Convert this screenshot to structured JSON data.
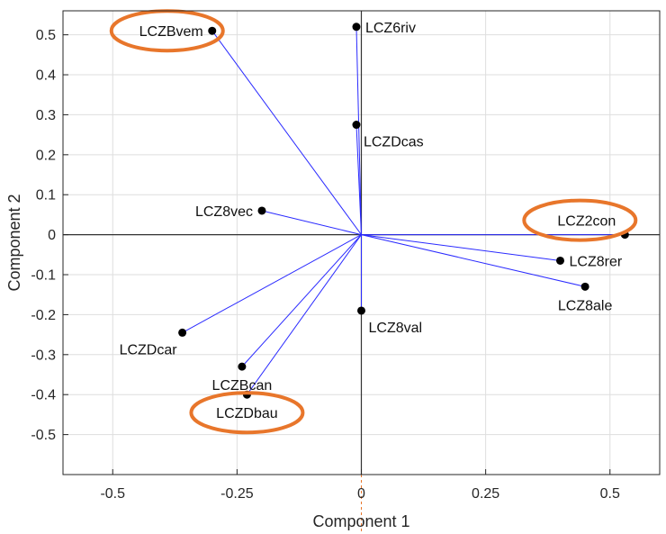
{
  "chart_data": {
    "type": "scatter",
    "xlabel": "Component 1",
    "ylabel": "Component 2",
    "xlim": [
      -0.6,
      0.6
    ],
    "ylim": [
      -0.6,
      0.56
    ],
    "xticks": [
      {
        "value": -0.5,
        "label": "-0.5"
      },
      {
        "value": -0.25,
        "label": "-0.25"
      },
      {
        "value": 0,
        "label": "0"
      },
      {
        "value": 0.25,
        "label": "0.25"
      },
      {
        "value": 0.5,
        "label": "0.5"
      }
    ],
    "yticks": [
      {
        "value": 0.5,
        "label": "0.5"
      },
      {
        "value": 0.4,
        "label": "0.4"
      },
      {
        "value": 0.3,
        "label": "0.3"
      },
      {
        "value": 0.2,
        "label": "0.2"
      },
      {
        "value": 0.1,
        "label": "0.1"
      },
      {
        "value": 0,
        "label": "0"
      },
      {
        "value": -0.1,
        "label": "-0.1"
      },
      {
        "value": -0.2,
        "label": "-0.2"
      },
      {
        "value": -0.3,
        "label": "-0.3"
      },
      {
        "value": -0.4,
        "label": "-0.4"
      },
      {
        "value": -0.5,
        "label": "-0.5"
      }
    ],
    "grid": true,
    "points": [
      {
        "label": "LCZBvem",
        "x": -0.3,
        "y": 0.51,
        "label_pos": "left",
        "highlighted": true
      },
      {
        "label": "LCZ6riv",
        "x": -0.01,
        "y": 0.52,
        "label_pos": "right",
        "highlighted": false
      },
      {
        "label": "LCZDcas",
        "x": -0.01,
        "y": 0.275,
        "label_pos": "below-right",
        "highlighted": false
      },
      {
        "label": "LCZ8vec",
        "x": -0.2,
        "y": 0.06,
        "label_pos": "left",
        "highlighted": false
      },
      {
        "label": "LCZ2con",
        "x": 0.53,
        "y": 0.0,
        "label_pos": "above-left",
        "highlighted": true
      },
      {
        "label": "LCZ8rer",
        "x": 0.4,
        "y": -0.065,
        "label_pos": "right",
        "highlighted": false
      },
      {
        "label": "LCZ8ale",
        "x": 0.45,
        "y": -0.13,
        "label_pos": "below",
        "highlighted": false
      },
      {
        "label": "LCZ8val",
        "x": 0.0,
        "y": -0.19,
        "label_pos": "below-right",
        "highlighted": false
      },
      {
        "label": "LCZDcar",
        "x": -0.36,
        "y": -0.245,
        "label_pos": "below-left",
        "highlighted": false
      },
      {
        "label": "LCZBcan",
        "x": -0.24,
        "y": -0.33,
        "label_pos": "below",
        "highlighted": false
      },
      {
        "label": "LCZDbau",
        "x": -0.23,
        "y": -0.4,
        "label_pos": "below",
        "highlighted": true
      }
    ],
    "vector_color": "#2b2bff",
    "highlight_color": "#e8762b"
  }
}
